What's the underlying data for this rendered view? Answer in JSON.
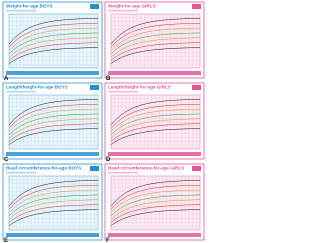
{
  "panels": [
    {
      "title": "Weight-for-age BOYS",
      "letter": "A",
      "sex": "boys"
    },
    {
      "title": "Weight-for-age GIRLS",
      "letter": "B",
      "sex": "girls"
    },
    {
      "title": "Length/height-for-age BOYS",
      "letter": "C",
      "sex": "boys"
    },
    {
      "title": "Length/height-for-age GIRLS",
      "letter": "D",
      "sex": "girls"
    },
    {
      "title": "Head circumference-for-age BOYS",
      "letter": "E",
      "sex": "boys"
    },
    {
      "title": "Head circumference-for-age GIRLS",
      "letter": "F",
      "sex": "girls"
    }
  ]
}
